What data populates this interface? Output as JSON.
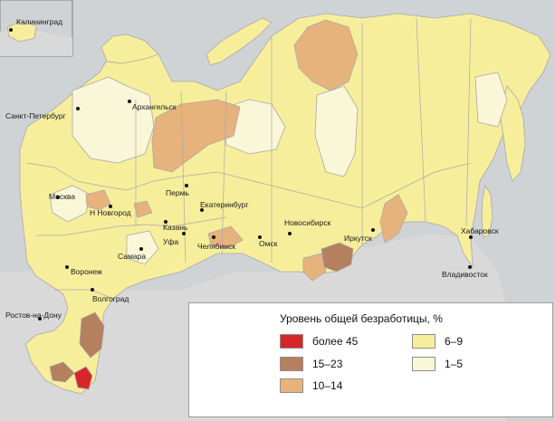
{
  "map": {
    "colors": {
      "sea": "#cfd3d6",
      "foreign_land": "#d9d9d9",
      "border": "#a9a9a9",
      "class_45_plus": "#d7262b",
      "class_15_23": "#b5805d",
      "class_10_14": "#e7b37c",
      "class_6_9": "#f7ee9c",
      "class_1_5": "#faf6d8"
    },
    "cities": [
      {
        "name": "Калининград"
      },
      {
        "name": "Санкт-Петербург"
      },
      {
        "name": "Архангельск"
      },
      {
        "name": "Москва"
      },
      {
        "name": "Н Новгород"
      },
      {
        "name": "Пермь"
      },
      {
        "name": "Екатеринбург"
      },
      {
        "name": "Казань"
      },
      {
        "name": "Уфа"
      },
      {
        "name": "Челябинск"
      },
      {
        "name": "Самара"
      },
      {
        "name": "Воронеж"
      },
      {
        "name": "Волгоград"
      },
      {
        "name": "Ростов-на-Дону"
      },
      {
        "name": "Новосибирск"
      },
      {
        "name": "Омск"
      },
      {
        "name": "Иркутск"
      },
      {
        "name": "Хабаровск"
      },
      {
        "name": "Владивосток"
      }
    ]
  },
  "legend": {
    "title": "Уровень общей безработицы, %",
    "items": [
      {
        "label": "более 45",
        "color": "#d7262b"
      },
      {
        "label": "15–23",
        "color": "#b5805d"
      },
      {
        "label": "10–14",
        "color": "#e7b37c"
      },
      {
        "label": "6–9",
        "color": "#f7ee9c"
      },
      {
        "label": "1–5",
        "color": "#faf6d8"
      }
    ]
  }
}
